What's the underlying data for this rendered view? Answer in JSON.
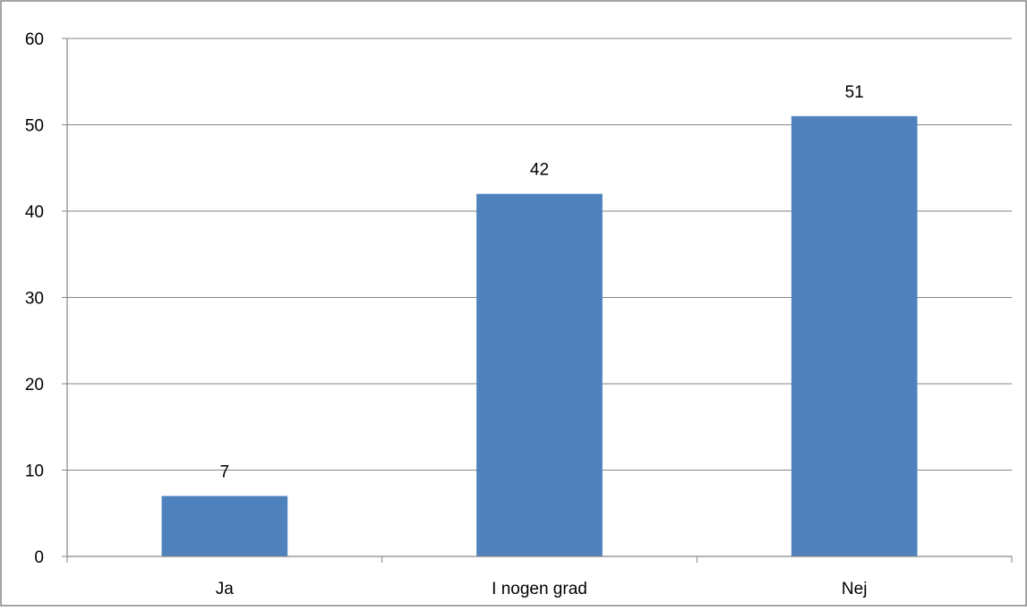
{
  "chart_data": {
    "type": "bar",
    "title": "",
    "xlabel": "",
    "ylabel": "",
    "categories": [
      "Ja",
      "I nogen grad",
      "Nej"
    ],
    "values": [
      7,
      42,
      51
    ],
    "data_labels": [
      "7",
      "42",
      "51"
    ],
    "ylim": [
      0,
      60
    ],
    "y_ticks": [
      0,
      10,
      20,
      30,
      40,
      50,
      60
    ],
    "y_tick_labels": [
      "0",
      "10",
      "20",
      "30",
      "40",
      "50",
      "60"
    ],
    "grid": true,
    "legend": "none",
    "colors": {
      "bar": "#4F81BD",
      "grid": "#868686",
      "axis": "#868686",
      "border": "#868686",
      "text": "#000000"
    }
  }
}
